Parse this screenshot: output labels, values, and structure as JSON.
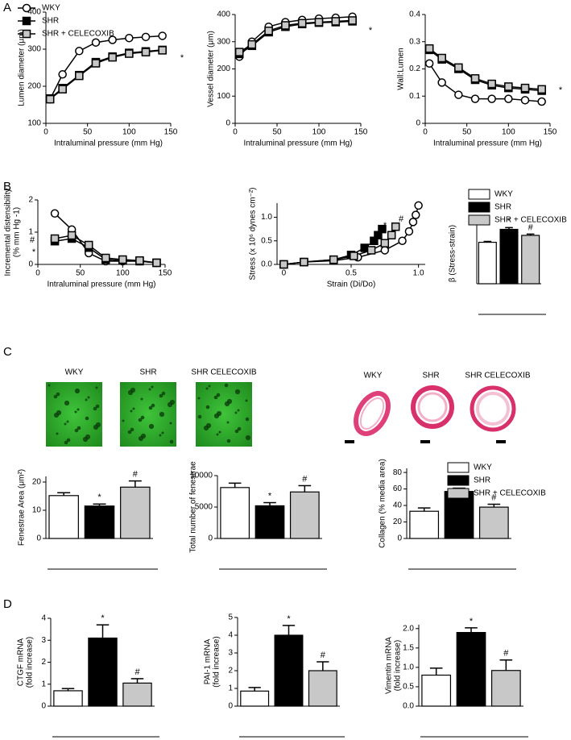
{
  "panel_labels": [
    "A",
    "B",
    "C",
    "D"
  ],
  "images": {
    "fenestrae": {
      "labels": [
        "WKY",
        "SHR",
        "SHR CELECOXIB"
      ]
    },
    "histology": {
      "labels": [
        "WKY",
        "SHR",
        "SHR CELECOXIB"
      ]
    }
  },
  "chart_data": [
    {
      "type": "line",
      "ylabel": [
        "Lumen diameter (μm)"
      ],
      "xlabel": "Intraluminal  pressure (mm Hg)",
      "x": [
        5,
        20,
        40,
        60,
        80,
        100,
        120,
        140
      ],
      "xlim": [
        0,
        150
      ],
      "xticks": [
        0,
        50,
        100,
        150
      ],
      "ylim": [
        100,
        400
      ],
      "yticks": [
        100,
        200,
        300,
        400
      ],
      "legend": true,
      "annotations": [
        "*"
      ],
      "series": [
        {
          "name": "WKY",
          "color": "#ffffff",
          "marker": "circle",
          "values": [
            165,
            232,
            295,
            318,
            325,
            330,
            333,
            336
          ]
        },
        {
          "name": "SHR",
          "color": "#000000",
          "marker": "square",
          "values": [
            167,
            195,
            230,
            265,
            280,
            290,
            294,
            298
          ]
        },
        {
          "name": "SHR + CELECOXIB",
          "color": "#c8c8c8",
          "marker": "square",
          "values": [
            165,
            192,
            228,
            262,
            278,
            288,
            292,
            297
          ]
        }
      ]
    },
    {
      "type": "line",
      "ylabel": [
        "Vessel  diameter (μm)"
      ],
      "xlabel": "Intraluminal  pressure (mm Hg)",
      "x": [
        5,
        20,
        40,
        60,
        80,
        100,
        120,
        140
      ],
      "xlim": [
        0,
        150
      ],
      "xticks": [
        0,
        50,
        100,
        150
      ],
      "ylim": [
        0,
        400
      ],
      "yticks": [
        0,
        100,
        200,
        300,
        400
      ],
      "annotations": [
        "*"
      ],
      "series": [
        {
          "name": "WKY",
          "color": "#ffffff",
          "marker": "circle",
          "values": [
            245,
            300,
            355,
            372,
            380,
            385,
            388,
            392
          ]
        },
        {
          "name": "SHR",
          "color": "#000000",
          "marker": "square",
          "values": [
            255,
            285,
            335,
            355,
            365,
            370,
            372,
            375
          ]
        },
        {
          "name": "SHR + CELECOXIB",
          "color": "#c8c8c8",
          "marker": "square",
          "values": [
            262,
            290,
            340,
            360,
            368,
            372,
            375,
            378
          ]
        }
      ]
    },
    {
      "type": "line",
      "ylabel": [
        "Wall:Lumen"
      ],
      "xlabel": "Intraluminal  pressure (mm Hg)",
      "x": [
        5,
        20,
        40,
        60,
        80,
        100,
        120,
        140
      ],
      "xlim": [
        0,
        150
      ],
      "xticks": [
        0,
        50,
        100,
        150
      ],
      "ylim": [
        0,
        0.4
      ],
      "yticks": [
        0,
        0.1,
        0.2,
        0.3,
        0.4
      ],
      "annotations": [
        "*"
      ],
      "series": [
        {
          "name": "WKY",
          "color": "#ffffff",
          "marker": "circle",
          "values": [
            0.22,
            0.15,
            0.105,
            0.09,
            0.09,
            0.09,
            0.085,
            0.08
          ]
        },
        {
          "name": "SHR",
          "color": "#000000",
          "marker": "square",
          "values": [
            0.27,
            0.235,
            0.2,
            0.16,
            0.14,
            0.13,
            0.125,
            0.12
          ]
        },
        {
          "name": "SHR + CELECOXIB",
          "color": "#c8c8c8",
          "marker": "square",
          "values": [
            0.275,
            0.24,
            0.205,
            0.165,
            0.145,
            0.135,
            0.13,
            0.125
          ]
        }
      ]
    },
    {
      "type": "line",
      "ylabel": [
        "Incremental distensibility",
        "(% mm Hg -1)"
      ],
      "xlabel": "Intraluminal  pressure (mm Hg)",
      "x": [
        20,
        40,
        60,
        80,
        100,
        120,
        140
      ],
      "xlim": [
        0,
        150
      ],
      "xticks": [
        0,
        50,
        100,
        150
      ],
      "ylim": [
        0,
        2
      ],
      "yticks": [
        0,
        1,
        2
      ],
      "annotations": [
        "#",
        "*"
      ],
      "series": [
        {
          "name": "WKY",
          "color": "#ffffff",
          "marker": "circle",
          "values": [
            1.58,
            1.08,
            0.35,
            0.1,
            0.1,
            0.1,
            0.05
          ]
        },
        {
          "name": "SHR",
          "color": "#000000",
          "marker": "square",
          "values": [
            0.72,
            0.8,
            0.52,
            0.15,
            0.12,
            0.1,
            0.05
          ]
        },
        {
          "name": "SHR + CELECOXIB",
          "color": "#c8c8c8",
          "marker": "square",
          "values": [
            0.8,
            0.9,
            0.6,
            0.2,
            0.15,
            0.12,
            0.05
          ]
        }
      ]
    },
    {
      "type": "line",
      "ylabel": [
        "Stress (x 10⁶ dynes cm⁻²)"
      ],
      "xlabel": "Strain  (Di/Do)",
      "xlim": [
        -0.05,
        1.05
      ],
      "xticks": [
        0,
        0.5,
        {
          "value": 1,
          "label": "1.0"
        }
      ],
      "ylim": [
        0,
        1.3
      ],
      "yticks": [
        {
          "value": 0,
          "label": "0.0"
        },
        0.5,
        {
          "value": 1,
          "label": "1.0"
        }
      ],
      "annotations": [
        "*",
        "#"
      ],
      "series": [
        {
          "name": "WKY",
          "color": "#ffffff",
          "marker": "circle",
          "x": [
            0,
            0.15,
            0.37,
            0.55,
            0.75,
            0.88,
            0.93,
            0.96,
            0.98,
            1.0
          ],
          "values": [
            0,
            0.05,
            0.08,
            0.15,
            0.3,
            0.5,
            0.7,
            0.9,
            1.05,
            1.25
          ]
        },
        {
          "name": "SHR",
          "color": "#000000",
          "marker": "square",
          "x": [
            0,
            0.15,
            0.37,
            0.5,
            0.6,
            0.67,
            0.7,
            0.73
          ],
          "values": [
            0,
            0.05,
            0.1,
            0.2,
            0.35,
            0.5,
            0.62,
            0.75
          ]
        },
        {
          "name": "SHR + CELECOXIB",
          "color": "#c8c8c8",
          "marker": "square",
          "x": [
            0,
            0.15,
            0.37,
            0.52,
            0.65,
            0.75,
            0.8,
            0.83
          ],
          "values": [
            0,
            0.05,
            0.1,
            0.18,
            0.3,
            0.45,
            0.62,
            0.8
          ]
        }
      ]
    },
    {
      "type": "bar",
      "ylabel": [
        "β (Stress-strain)"
      ],
      "categories": [
        null,
        null,
        null
      ],
      "values": [
        4.8,
        6.3,
        5.6
      ],
      "errors": [
        0.1,
        0.2,
        0.15
      ],
      "colors": [
        "#ffffff",
        "#000000",
        "#c8c8c8"
      ],
      "annotations": [
        null,
        "*",
        "#"
      ],
      "ylim": [
        0,
        7
      ],
      "legend": [
        "WKY",
        "SHR",
        "SHR + CELECOXIB"
      ]
    },
    {
      "type": "bar",
      "ylabel": [
        "Fenestrae Area (μm²)"
      ],
      "categories": [
        null,
        null,
        null
      ],
      "values": [
        15.2,
        11.5,
        18.2
      ],
      "errors": [
        1,
        0.7,
        2.2
      ],
      "colors": [
        "#ffffff",
        "#000000",
        "#c8c8c8"
      ],
      "annotations": [
        null,
        "*",
        "#"
      ],
      "ylim": [
        0,
        22
      ],
      "yticks": [
        0,
        10,
        20
      ]
    },
    {
      "type": "bar",
      "ylabel": [
        "Total number of fenestrae"
      ],
      "categories": [
        null,
        null,
        null
      ],
      "values": [
        8100,
        5200,
        7400
      ],
      "errors": [
        700,
        500,
        1000
      ],
      "colors": [
        "#ffffff",
        "#000000",
        "#c8c8c8"
      ],
      "annotations": [
        null,
        "*",
        "#"
      ],
      "ylim": [
        0,
        10000
      ],
      "yticks": [
        0,
        5000,
        10000
      ]
    },
    {
      "type": "bar",
      "ylabel": [
        "Collagen (% media area)"
      ],
      "categories": [
        null,
        null,
        null
      ],
      "values": [
        33,
        57,
        38
      ],
      "errors": [
        4,
        4,
        3.5
      ],
      "colors": [
        "#ffffff",
        "#000000",
        "#c8c8c8"
      ],
      "annotations": [
        null,
        "*",
        "#"
      ],
      "ylim": [
        0,
        85
      ],
      "yticks": [
        0,
        20,
        40,
        60,
        80
      ],
      "legend": [
        "WKY",
        "SHR",
        "SHR + CELECOXIB"
      ]
    },
    {
      "type": "bar",
      "ylabel": [
        "CTGF mRNA",
        "(fold  increase)"
      ],
      "categories": [
        null,
        null,
        null
      ],
      "values": [
        0.7,
        3.1,
        1.05
      ],
      "errors": [
        0.1,
        0.6,
        0.2
      ],
      "colors": [
        "#ffffff",
        "#000000",
        "#c8c8c8"
      ],
      "annotations": [
        null,
        "*",
        "#"
      ],
      "ylim": [
        0,
        4
      ],
      "yticks": [
        0,
        1,
        2,
        3,
        4
      ]
    },
    {
      "type": "bar",
      "ylabel": [
        "PAI-1 mRNA",
        "(fold  increase)"
      ],
      "categories": [
        null,
        null,
        null
      ],
      "values": [
        0.85,
        4.0,
        2.0
      ],
      "errors": [
        0.2,
        0.55,
        0.5
      ],
      "colors": [
        "#ffffff",
        "#000000",
        "#c8c8c8"
      ],
      "annotations": [
        null,
        "*",
        "#"
      ],
      "ylim": [
        0,
        5
      ],
      "yticks": [
        0,
        1,
        2,
        3,
        4,
        5
      ]
    },
    {
      "type": "bar",
      "ylabel": [
        "Vimentin mRNA",
        "(fold  increase)"
      ],
      "categories": [
        null,
        null,
        null
      ],
      "values": [
        0.8,
        1.9,
        0.92
      ],
      "errors": [
        0.18,
        0.12,
        0.27
      ],
      "colors": [
        "#ffffff",
        "#000000",
        "#c8c8c8"
      ],
      "annotations": [
        null,
        "*",
        "#"
      ],
      "ylim": [
        0,
        2.1
      ],
      "yticks": [
        {
          "value": 0,
          "label": "0.0"
        },
        0.5,
        {
          "value": 1,
          "label": "1.0"
        },
        1.5,
        {
          "value": 2,
          "label": "2.0"
        }
      ]
    }
  ]
}
